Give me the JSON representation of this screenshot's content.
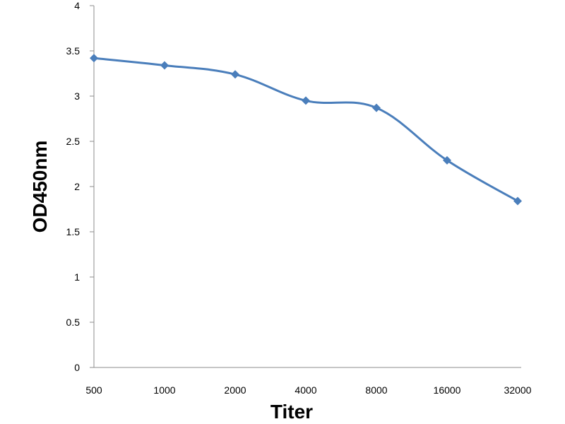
{
  "chart_data": {
    "type": "line",
    "title": "",
    "xlabel": "Titer",
    "ylabel": "OD450nm",
    "categories": [
      "500",
      "1000",
      "2000",
      "4000",
      "8000",
      "16000",
      "32000"
    ],
    "series": [
      {
        "values": [
          3.42,
          3.34,
          3.24,
          2.95,
          2.87,
          2.29,
          1.84
        ],
        "color": "#4a7ebb",
        "marker": "diamond"
      }
    ],
    "ylim": [
      0,
      4
    ],
    "yticks": [
      "0",
      "0.5",
      "1",
      "1.5",
      "2",
      "2.5",
      "3",
      "3.5",
      "4"
    ],
    "grid": false,
    "legend": "none"
  }
}
